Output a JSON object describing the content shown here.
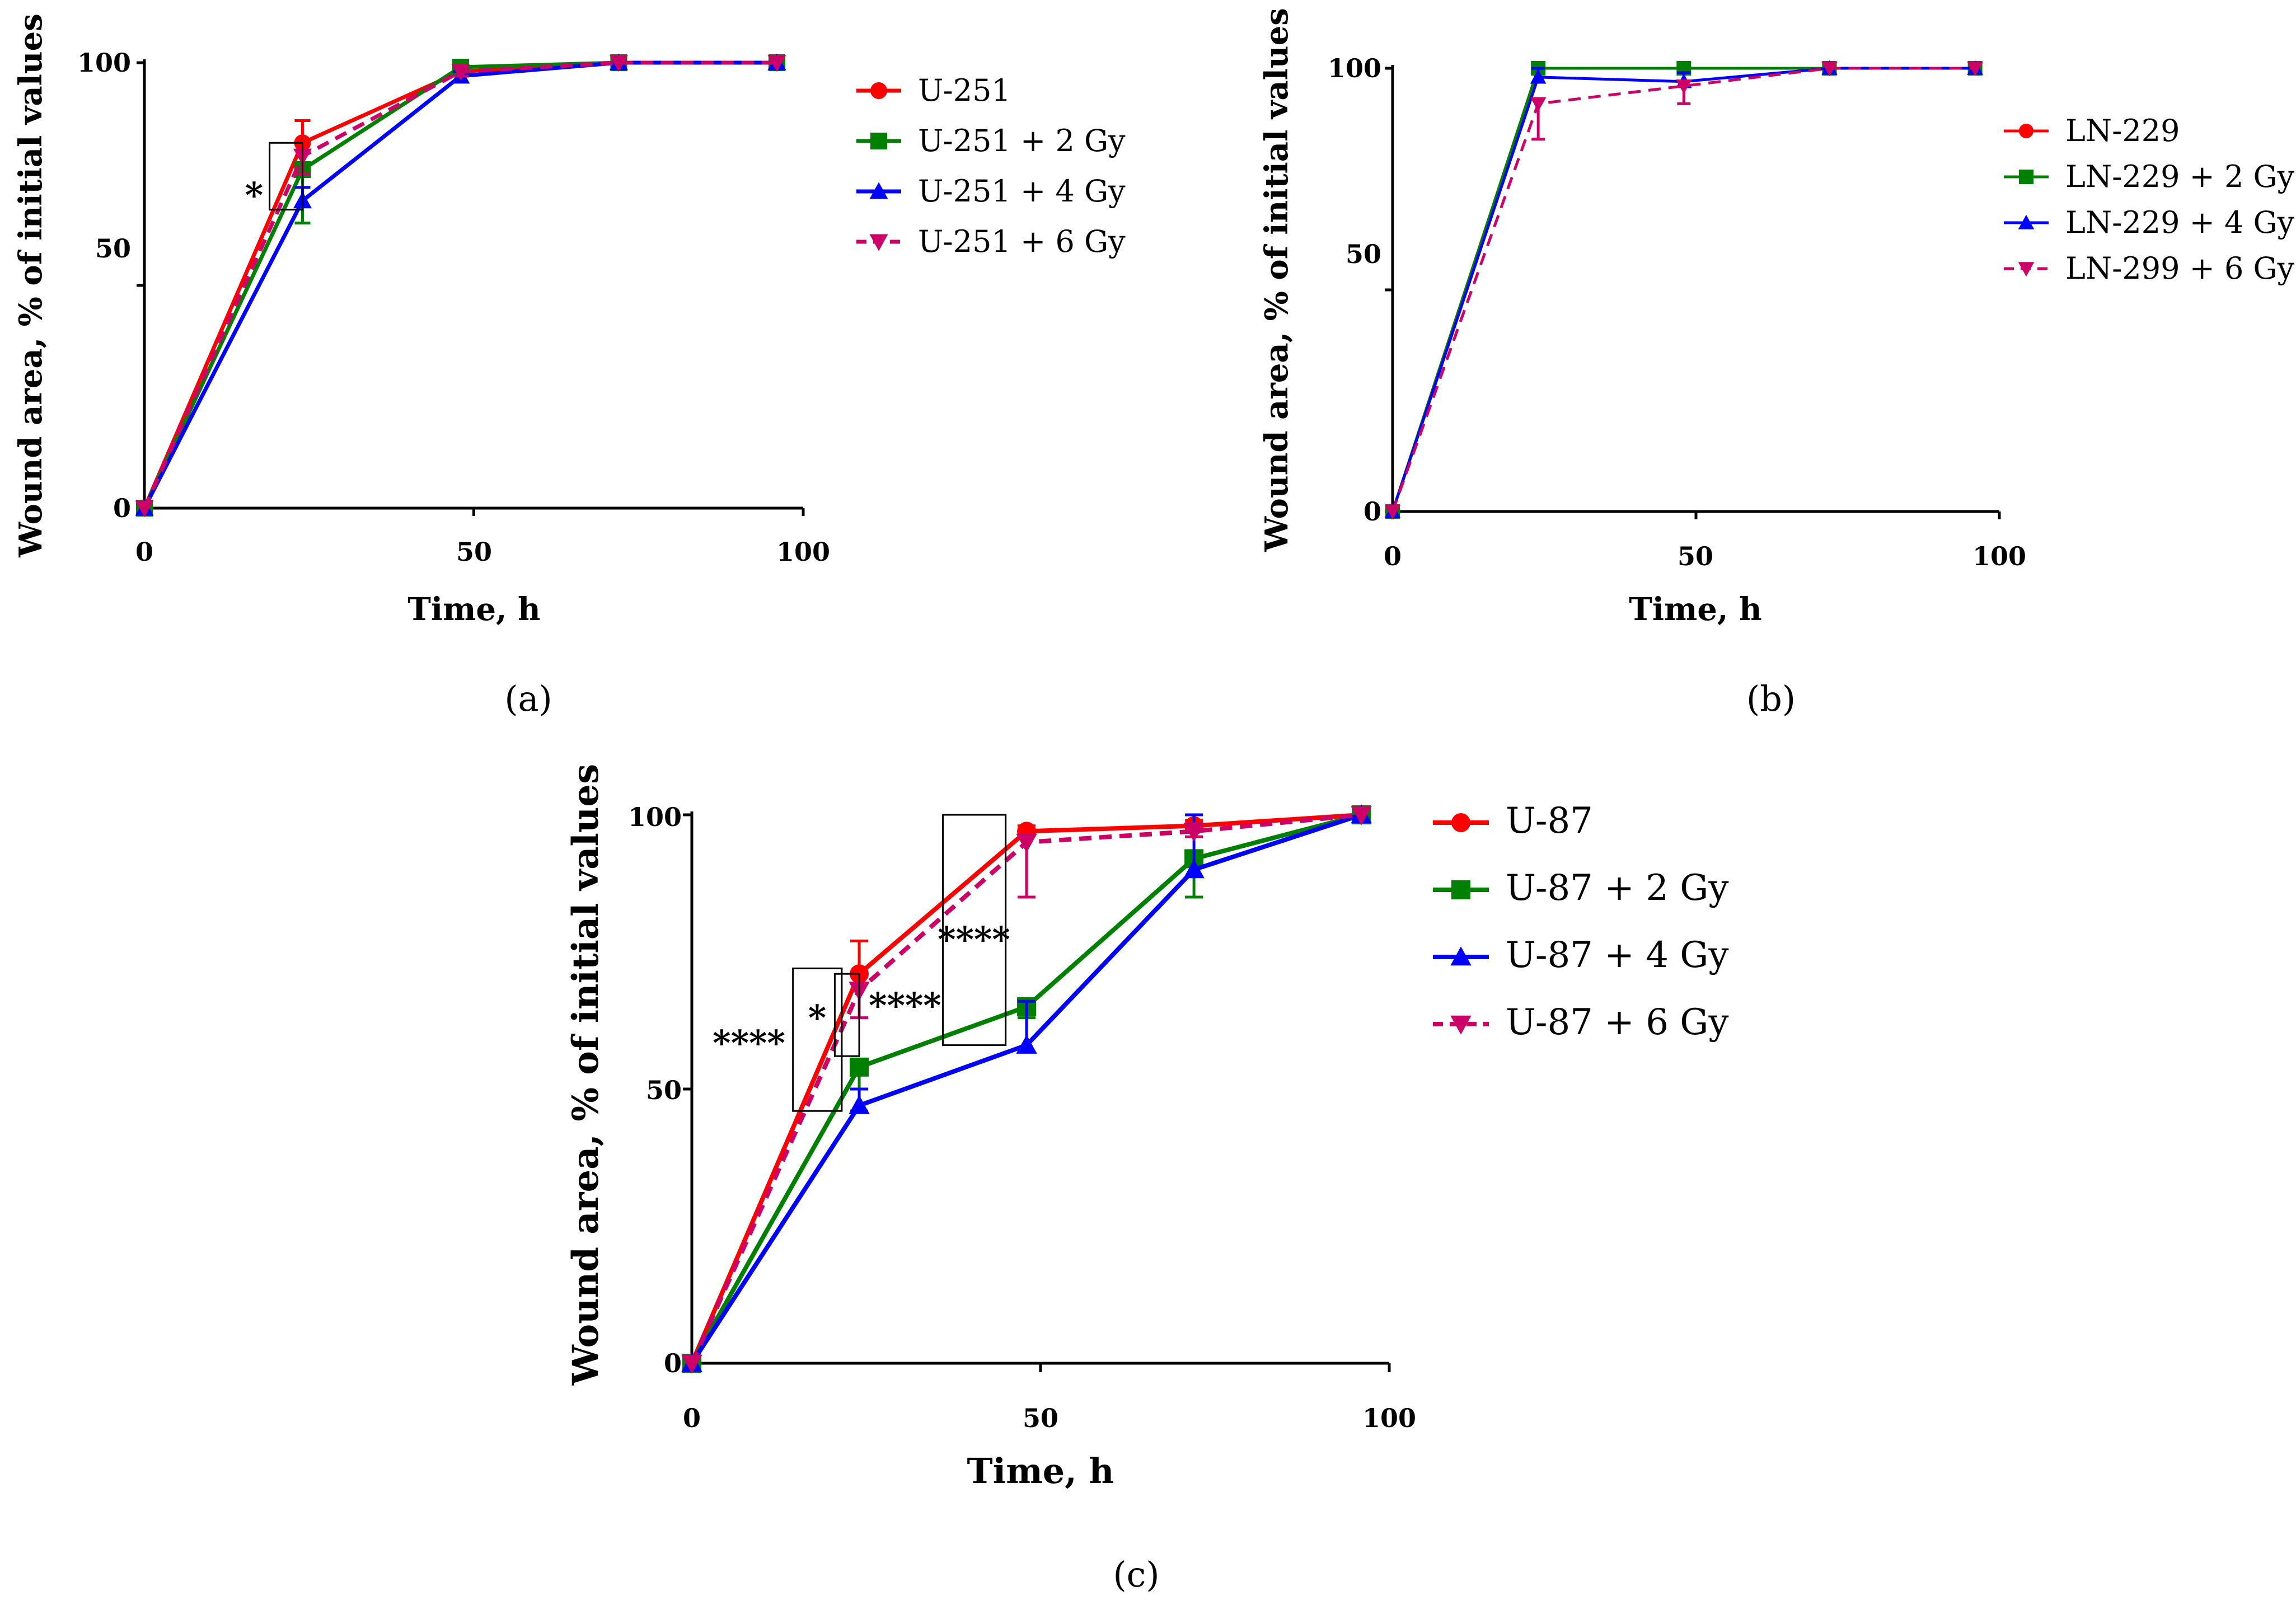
{
  "chart_data": [
    {
      "id": "a",
      "type": "line",
      "caption": "(a)",
      "xlabel": "Time, h",
      "ylabel": "Wound area, % of initial values",
      "xlim": [
        0,
        100
      ],
      "ylim": [
        0,
        100
      ],
      "xticks": [
        0,
        50,
        100
      ],
      "yticks": [
        0,
        50,
        100
      ],
      "x": [
        0,
        24,
        48,
        72,
        96
      ],
      "series": [
        {
          "name": "U-251",
          "color": "#ff0000",
          "dashed": false,
          "marker": "circle",
          "values": [
            0,
            82,
            98,
            100,
            100
          ],
          "errors": [
            0,
            5,
            1,
            0,
            0
          ]
        },
        {
          "name": "U-251 + 2 Gy",
          "color": "#008000",
          "dashed": false,
          "marker": "square",
          "values": [
            0,
            76,
            99,
            100,
            100
          ],
          "errors": [
            0,
            12,
            1,
            0,
            0
          ]
        },
        {
          "name": "U-251 + 4 Gy",
          "color": "#0000ff",
          "dashed": false,
          "marker": "triangle",
          "values": [
            0,
            69,
            97,
            100,
            100
          ],
          "errors": [
            0,
            3,
            1,
            0,
            0
          ]
        },
        {
          "name": "U-251 + 6 Gy",
          "color": "#cc0066",
          "dashed": true,
          "marker": "triangle-down",
          "values": [
            0,
            79,
            98,
            100,
            100
          ],
          "errors": [
            0,
            4,
            1,
            0,
            0
          ]
        }
      ],
      "annotations": [
        {
          "text": "*",
          "bracket": {
            "x0": 19,
            "x1": 24,
            "y0": 67,
            "y1": 82
          }
        }
      ]
    },
    {
      "id": "b",
      "type": "line",
      "caption": "(b)",
      "xlabel": "Time, h",
      "ylabel": "Wound area, % of initial values",
      "xlim": [
        0,
        100
      ],
      "ylim": [
        0,
        100
      ],
      "xticks": [
        0,
        50,
        100
      ],
      "yticks": [
        0,
        50,
        100
      ],
      "x": [
        0,
        24,
        48,
        72,
        96
      ],
      "series": [
        {
          "name": "LN-229",
          "color": "#ff0000",
          "dashed": false,
          "marker": "circle",
          "values": [
            0,
            100,
            100,
            100,
            100
          ],
          "errors": [
            0,
            0,
            0,
            0,
            0
          ]
        },
        {
          "name": "LN-229 + 2 Gy",
          "color": "#008000",
          "dashed": false,
          "marker": "square",
          "values": [
            0,
            100,
            100,
            100,
            100
          ],
          "errors": [
            0,
            0,
            0,
            0,
            0
          ]
        },
        {
          "name": "LN-229 + 4 Gy",
          "color": "#0000ff",
          "dashed": false,
          "marker": "triangle",
          "values": [
            0,
            98,
            97,
            100,
            100
          ],
          "errors": [
            0,
            2,
            2,
            0,
            0
          ]
        },
        {
          "name": "LN-299 + 6 Gy",
          "color": "#cc0066",
          "dashed": true,
          "marker": "triangle-down",
          "values": [
            0,
            92,
            96,
            100,
            100
          ],
          "errors": [
            0,
            8,
            4,
            0,
            0
          ]
        }
      ],
      "annotations": []
    },
    {
      "id": "c",
      "type": "line",
      "caption": "(c)",
      "xlabel": "Time, h",
      "ylabel": "Wound area, % of initial values",
      "xlim": [
        0,
        100
      ],
      "ylim": [
        0,
        100
      ],
      "xticks": [
        0,
        50,
        100
      ],
      "yticks": [
        0,
        50,
        100
      ],
      "x": [
        0,
        24,
        48,
        72,
        96
      ],
      "series": [
        {
          "name": "U-87",
          "color": "#ff0000",
          "dashed": false,
          "marker": "circle",
          "values": [
            0,
            71,
            97,
            98,
            100
          ],
          "errors": [
            0,
            6,
            1,
            1,
            0
          ]
        },
        {
          "name": "U-87 + 2 Gy",
          "color": "#008000",
          "dashed": false,
          "marker": "square",
          "values": [
            0,
            54,
            65,
            92,
            100
          ],
          "errors": [
            0,
            8,
            2,
            7,
            0
          ]
        },
        {
          "name": "U-87 + 4 Gy",
          "color": "#0000ff",
          "dashed": false,
          "marker": "triangle",
          "values": [
            0,
            47,
            58,
            90,
            100
          ],
          "errors": [
            0,
            3,
            8,
            10,
            0
          ]
        },
        {
          "name": "U-87 + 6 Gy",
          "color": "#cc0066",
          "dashed": true,
          "marker": "triangle-down",
          "values": [
            0,
            68,
            95,
            97,
            100
          ],
          "errors": [
            0,
            5,
            10,
            1,
            0
          ]
        }
      ],
      "annotations": [
        {
          "text": "****",
          "bracket": {
            "x0": 14.5,
            "x1": 21.5,
            "y0": 46,
            "y1": 72
          }
        },
        {
          "text": "*",
          "bracket": {
            "x0": 20.5,
            "x1": 24,
            "y0": 56,
            "y1": 71
          }
        },
        {
          "text": "****",
          "bracket": null
        },
        {
          "text": "****",
          "bracket": {
            "x0": 36,
            "x1": 45,
            "y0": 58,
            "y1": 100
          }
        }
      ]
    }
  ]
}
